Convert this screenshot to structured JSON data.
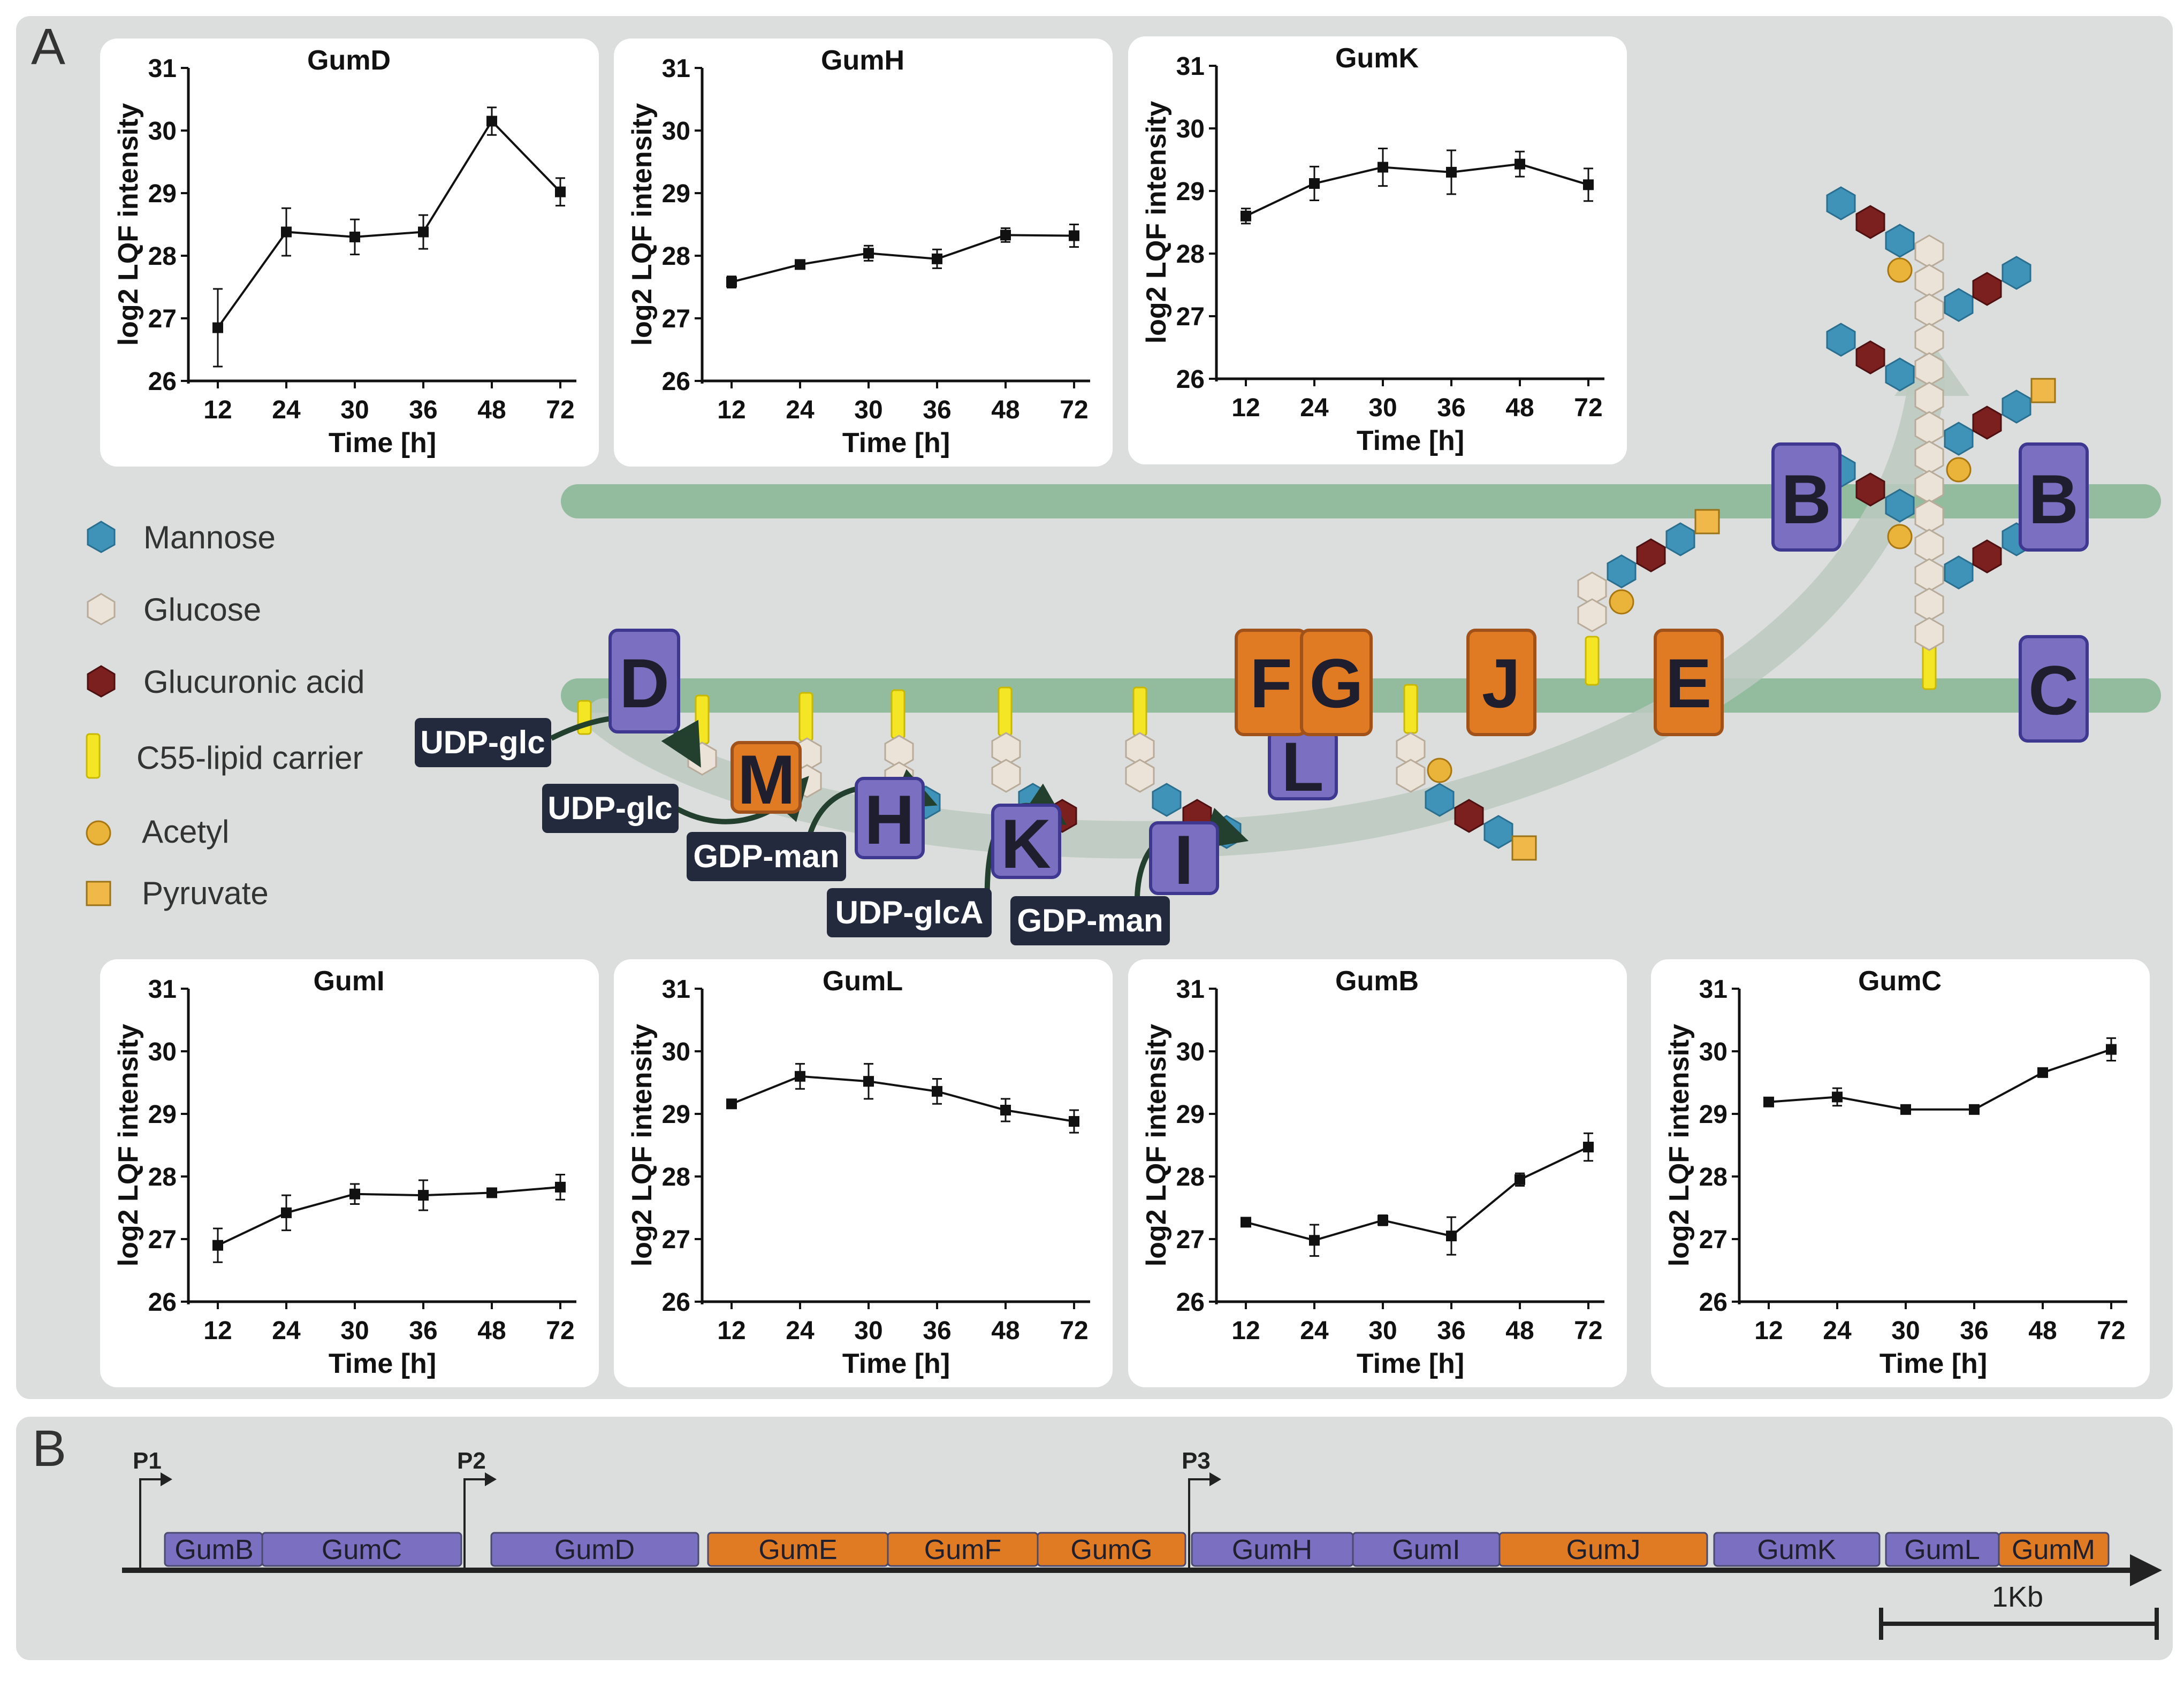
{
  "panel_labels": {
    "a": "A",
    "b": "B"
  },
  "colors": {
    "background": "#dcdedd",
    "membrane": "#93bc9f",
    "purple": "#7a6fc0",
    "orange": "#e07b24",
    "mannose": "#3f93b8",
    "glucose": "#ece3d8",
    "glucuronic": "#7b1f1f",
    "lipid": "#f5e625",
    "acetyl": "#eab43a",
    "pyruvate": "#efb848",
    "substrate": "#232a3e"
  },
  "legend": [
    {
      "label": "Mannose",
      "icon": "mannose-hexagon-icon"
    },
    {
      "label": "Glucose",
      "icon": "glucose-hexagon-icon"
    },
    {
      "label": "Glucuronic acid",
      "icon": "glucuronic-acid-hexagon-icon"
    },
    {
      "label": "C55-lipid carrier",
      "icon": "lipid-carrier-icon"
    },
    {
      "label": "Acetyl",
      "icon": "acetyl-circle-icon"
    },
    {
      "label": "Pyruvate",
      "icon": "pyruvate-square-icon"
    }
  ],
  "enzymes": {
    "D": "D",
    "M": "M",
    "H": "H",
    "K": "K",
    "I": "I",
    "F": "F",
    "G": "G",
    "L": "L",
    "J": "J",
    "E": "E",
    "C": "C",
    "B_left": "B",
    "B_right": "B"
  },
  "substrates": [
    "UDP-glc",
    "UDP-glc",
    "GDP-man",
    "UDP-glcA",
    "GDP-man"
  ],
  "chart_data": [
    {
      "type": "line",
      "title": "GumD",
      "xlabel": "Time [h]",
      "ylabel": "log2 LQF intensity",
      "categories": [
        "12",
        "24",
        "30",
        "36",
        "48",
        "72"
      ],
      "values": [
        26.85,
        28.38,
        28.3,
        28.38,
        30.15,
        29.02
      ],
      "errors": [
        0.62,
        0.38,
        0.28,
        0.27,
        0.22,
        0.22
      ],
      "ylim": [
        26,
        31
      ],
      "yticks": [
        "26",
        "27",
        "28",
        "29",
        "30",
        "31"
      ]
    },
    {
      "type": "line",
      "title": "GumH",
      "xlabel": "Time [h]",
      "ylabel": "log2 LQF intensity",
      "categories": [
        "12",
        "24",
        "30",
        "36",
        "48",
        "72"
      ],
      "values": [
        27.58,
        27.86,
        28.04,
        27.95,
        28.33,
        28.32
      ],
      "errors": [
        0.09,
        0.04,
        0.12,
        0.15,
        0.11,
        0.18
      ],
      "ylim": [
        26,
        31
      ],
      "yticks": [
        "26",
        "27",
        "28",
        "29",
        "30",
        "31"
      ]
    },
    {
      "type": "line",
      "title": "GumK",
      "xlabel": "Time [h]",
      "ylabel": "log2 LQF intensity",
      "categories": [
        "12",
        "24",
        "30",
        "36",
        "48",
        "72"
      ],
      "values": [
        28.6,
        29.12,
        29.38,
        29.3,
        29.43,
        29.1
      ],
      "errors": [
        0.12,
        0.27,
        0.3,
        0.35,
        0.2,
        0.26
      ],
      "ylim": [
        26,
        31
      ],
      "yticks": [
        "26",
        "27",
        "28",
        "29",
        "30",
        "31"
      ]
    },
    {
      "type": "line",
      "title": "GumI",
      "xlabel": "Time [h]",
      "ylabel": "log2 LQF intensity",
      "categories": [
        "12",
        "24",
        "30",
        "36",
        "48",
        "72"
      ],
      "values": [
        26.9,
        27.42,
        27.72,
        27.7,
        27.74,
        27.83
      ],
      "errors": [
        0.27,
        0.28,
        0.16,
        0.24,
        0.06,
        0.2
      ],
      "ylim": [
        26,
        31
      ],
      "yticks": [
        "26",
        "27",
        "28",
        "29",
        "30",
        "31"
      ]
    },
    {
      "type": "line",
      "title": "GumL",
      "xlabel": "Time [h]",
      "ylabel": "log2 LQF intensity",
      "categories": [
        "12",
        "24",
        "30",
        "36",
        "48",
        "72"
      ],
      "values": [
        29.16,
        29.6,
        29.52,
        29.36,
        29.06,
        28.88
      ],
      "errors": [
        0.06,
        0.2,
        0.28,
        0.2,
        0.18,
        0.18
      ],
      "ylim": [
        26,
        31
      ],
      "yticks": [
        "26",
        "27",
        "28",
        "29",
        "30",
        "31"
      ]
    },
    {
      "type": "line",
      "title": "GumB",
      "xlabel": "Time [h]",
      "ylabel": "log2 LQF intensity",
      "categories": [
        "12",
        "24",
        "30",
        "36",
        "48",
        "72"
      ],
      "values": [
        27.27,
        26.98,
        27.3,
        27.05,
        27.95,
        28.47
      ],
      "errors": [
        0.07,
        0.25,
        0.08,
        0.3,
        0.1,
        0.22
      ],
      "ylim": [
        26,
        31
      ],
      "yticks": [
        "26",
        "27",
        "28",
        "29",
        "30",
        "31"
      ]
    },
    {
      "type": "line",
      "title": "GumC",
      "xlabel": "Time [h]",
      "ylabel": "log2 LQF intensity",
      "categories": [
        "12",
        "24",
        "30",
        "36",
        "48",
        "72"
      ],
      "values": [
        29.19,
        29.27,
        29.07,
        29.07,
        29.66,
        30.03
      ],
      "errors": [
        0.06,
        0.14,
        0.03,
        0.03,
        0.06,
        0.18
      ],
      "ylim": [
        26,
        31
      ],
      "yticks": [
        "26",
        "27",
        "28",
        "29",
        "30",
        "31"
      ]
    }
  ],
  "operon": {
    "promoters": [
      "P1",
      "P2",
      "P3"
    ],
    "genes": [
      {
        "label": "GumB",
        "color": "purple"
      },
      {
        "label": "GumC",
        "color": "purple"
      },
      {
        "label": "GumD",
        "color": "purple"
      },
      {
        "label": "GumE",
        "color": "orange"
      },
      {
        "label": "GumF",
        "color": "orange"
      },
      {
        "label": "GumG",
        "color": "orange"
      },
      {
        "label": "GumH",
        "color": "purple"
      },
      {
        "label": "GumI",
        "color": "purple"
      },
      {
        "label": "GumJ",
        "color": "orange"
      },
      {
        "label": "GumK",
        "color": "purple"
      },
      {
        "label": "GumL",
        "color": "purple"
      },
      {
        "label": "GumM",
        "color": "orange"
      }
    ],
    "scale_label": "1Kb"
  }
}
